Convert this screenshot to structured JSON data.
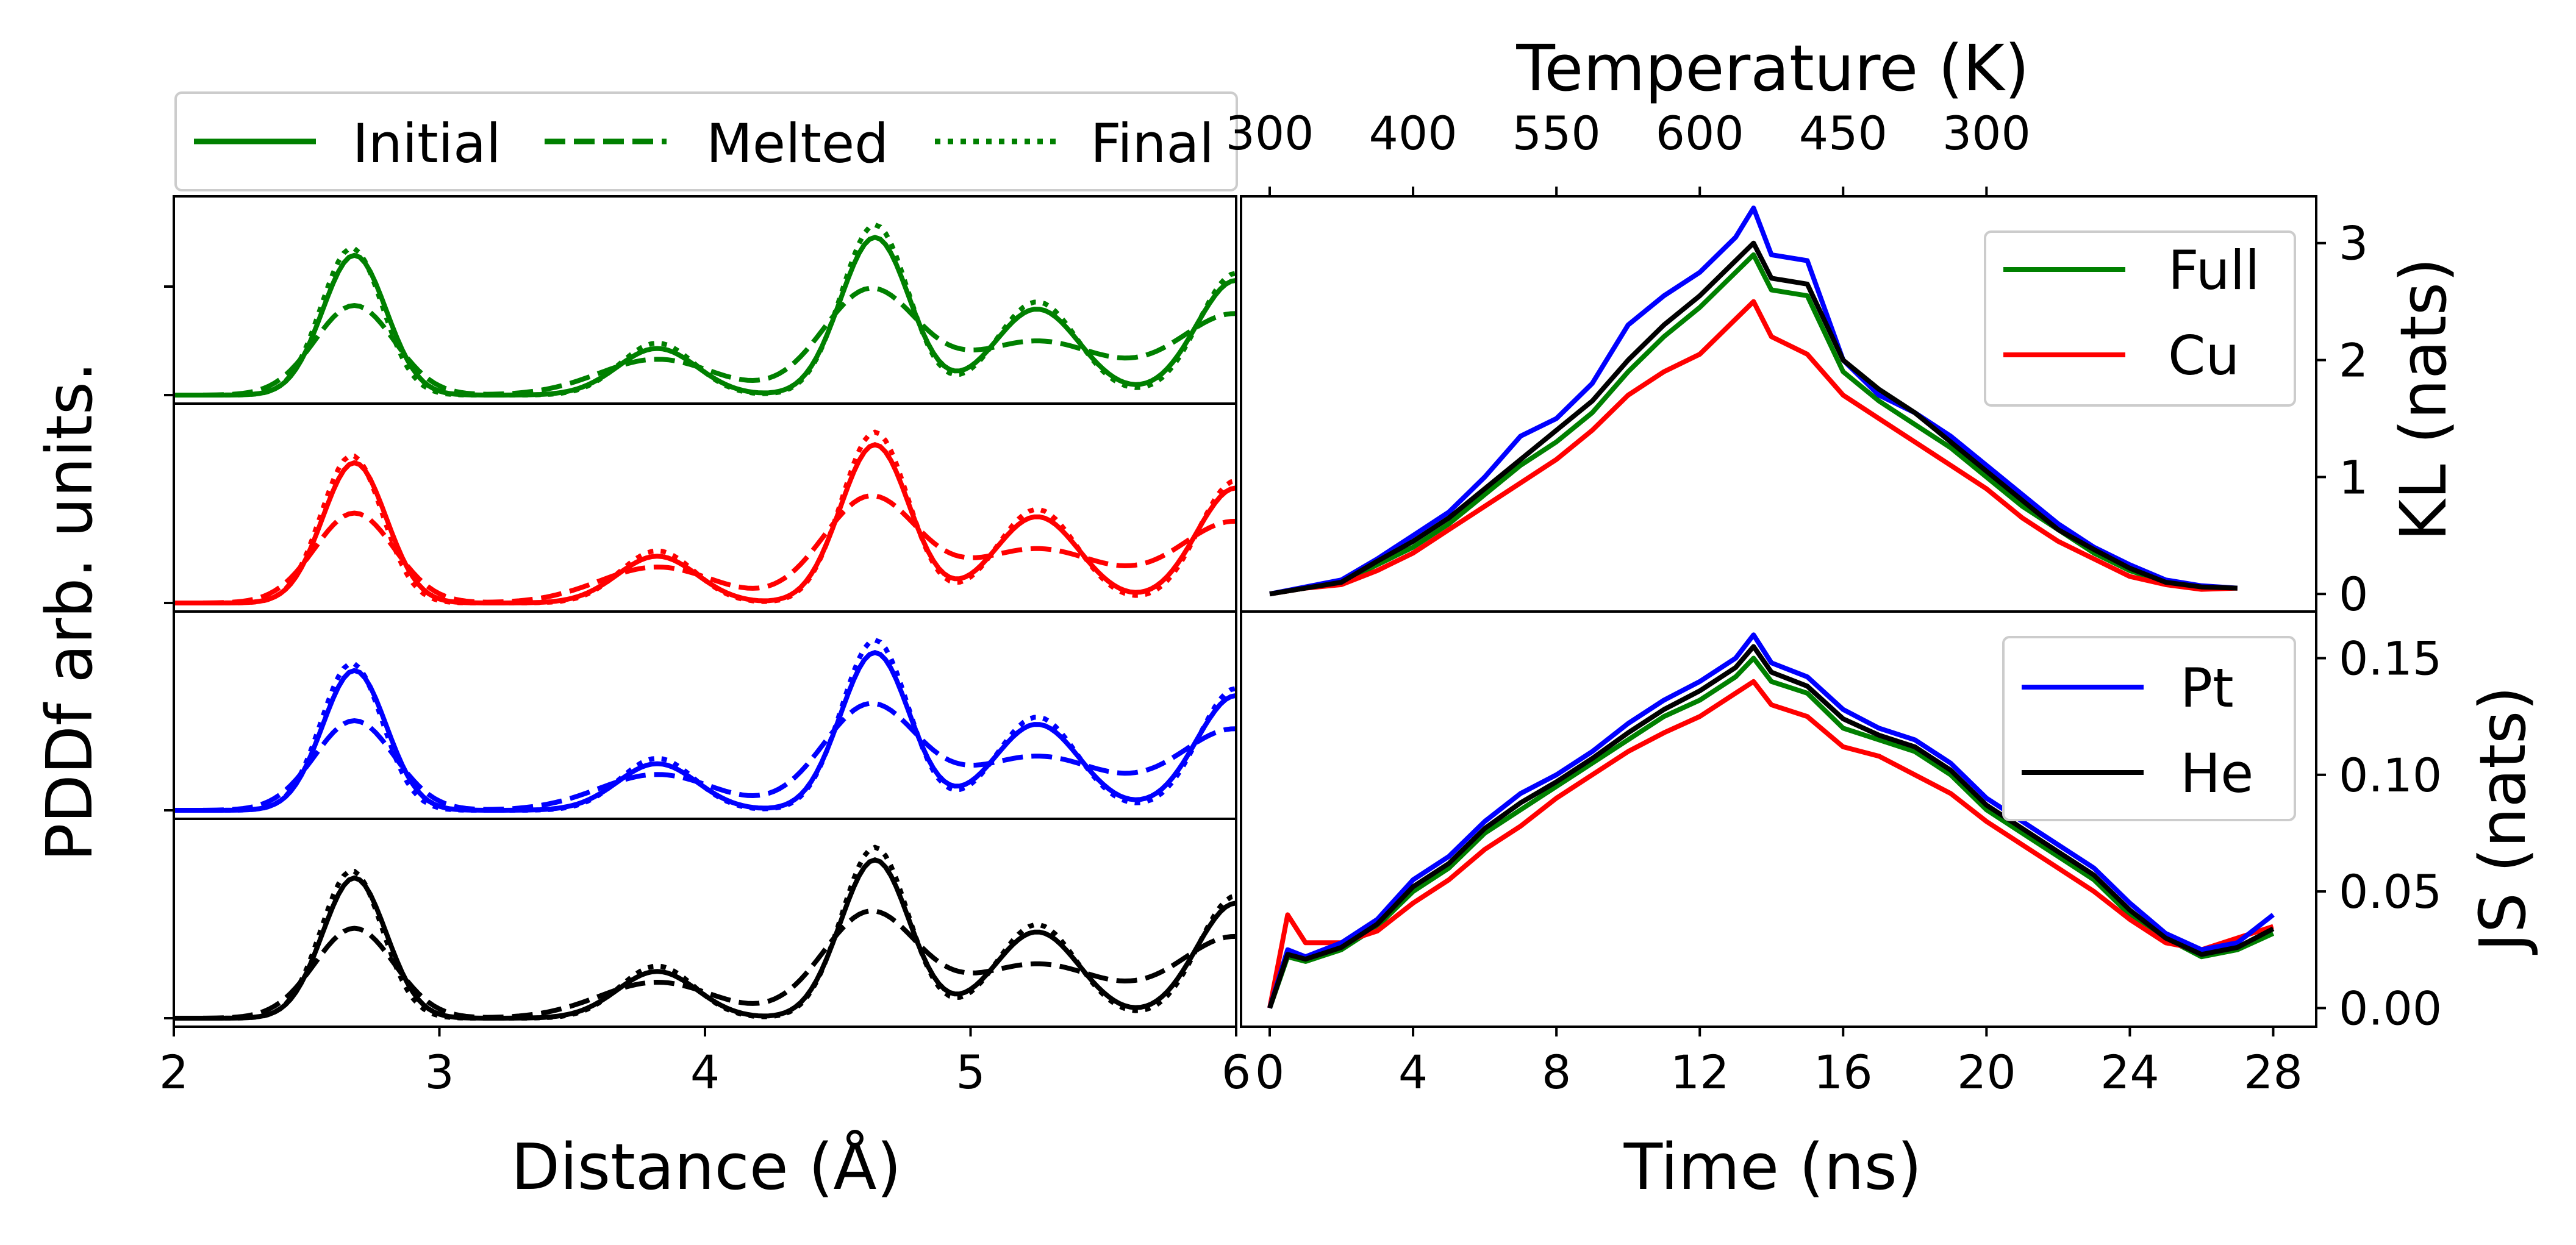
{
  "chart_data": [
    {
      "type": "line",
      "panel": "left-pddf",
      "xlabel": "Distance (Å)",
      "ylabel": "PDDf arb. units.",
      "xlim": [
        2,
        6
      ],
      "xticks": [
        "2",
        "3",
        "4",
        "5",
        "6"
      ],
      "legend": {
        "placement": "top",
        "entries": [
          {
            "label": "Initial",
            "style": "solid"
          },
          {
            "label": "Melted",
            "style": "dashed"
          },
          {
            "label": "Final",
            "style": "dotted"
          }
        ]
      },
      "subplots": [
        {
          "color": "#008000"
        },
        {
          "color": "#ff0000"
        },
        {
          "color": "#0000ff"
        },
        {
          "color": "#000000"
        }
      ],
      "peaks": {
        "initial": [
          [
            2.68,
            0.78,
            0.12
          ],
          [
            3.82,
            0.26,
            0.15
          ],
          [
            4.64,
            0.88,
            0.13
          ],
          [
            5.25,
            0.48,
            0.16
          ],
          [
            6.0,
            0.64,
            0.15
          ]
        ],
        "melted": [
          [
            2.68,
            0.5,
            0.15
          ],
          [
            3.82,
            0.2,
            0.22
          ],
          [
            4.62,
            0.58,
            0.18
          ],
          [
            5.25,
            0.3,
            0.26
          ],
          [
            6.0,
            0.45,
            0.22
          ]
        ],
        "final": [
          [
            2.67,
            0.82,
            0.115
          ],
          [
            3.82,
            0.29,
            0.14
          ],
          [
            4.64,
            0.95,
            0.125
          ],
          [
            5.25,
            0.52,
            0.15
          ],
          [
            6.0,
            0.68,
            0.14
          ]
        ]
      }
    },
    {
      "type": "line",
      "panel": "right-kl",
      "ylabel": "KL (nats)",
      "ylim": [
        -0.15,
        3.4
      ],
      "yticks": [
        "0",
        "1",
        "2",
        "3"
      ],
      "legend": {
        "placement": "top-right",
        "entries": [
          "Full",
          "Cu"
        ]
      },
      "top_axis": {
        "label": "Temperature (K)",
        "ticks": [
          "300",
          "400",
          "550",
          "600",
          "450",
          "300"
        ]
      },
      "x": [
        0,
        1,
        2,
        3,
        4,
        5,
        6,
        7,
        8,
        9,
        10,
        11,
        12,
        13,
        13.5,
        14,
        15,
        16,
        17,
        18,
        19,
        20,
        21,
        22,
        23,
        24,
        25,
        26,
        27
      ],
      "series": [
        {
          "name": "Full",
          "color": "#008000",
          "values": [
            0.0,
            0.05,
            0.1,
            0.25,
            0.4,
            0.6,
            0.85,
            1.1,
            1.3,
            1.55,
            1.9,
            2.2,
            2.45,
            2.75,
            2.9,
            2.6,
            2.55,
            1.9,
            1.65,
            1.45,
            1.25,
            1.0,
            0.75,
            0.55,
            0.35,
            0.2,
            0.1,
            0.05,
            0.05
          ]
        },
        {
          "name": "Cu",
          "color": "#ff0000",
          "values": [
            0.0,
            0.05,
            0.08,
            0.2,
            0.35,
            0.55,
            0.75,
            0.95,
            1.15,
            1.4,
            1.7,
            1.9,
            2.05,
            2.35,
            2.5,
            2.2,
            2.05,
            1.7,
            1.5,
            1.3,
            1.1,
            0.9,
            0.65,
            0.45,
            0.3,
            0.15,
            0.08,
            0.04,
            0.05
          ]
        },
        {
          "name": "Pt",
          "color": "#0000ff",
          "values": [
            0.0,
            0.06,
            0.12,
            0.3,
            0.5,
            0.7,
            1.0,
            1.35,
            1.5,
            1.8,
            2.3,
            2.55,
            2.75,
            3.05,
            3.3,
            2.9,
            2.85,
            2.0,
            1.7,
            1.55,
            1.35,
            1.1,
            0.85,
            0.6,
            0.4,
            0.25,
            0.12,
            0.07,
            0.05
          ]
        },
        {
          "name": "He",
          "color": "#000000",
          "values": [
            0.0,
            0.05,
            0.1,
            0.28,
            0.45,
            0.65,
            0.9,
            1.15,
            1.4,
            1.65,
            2.0,
            2.3,
            2.55,
            2.85,
            3.0,
            2.7,
            2.65,
            2.0,
            1.75,
            1.55,
            1.3,
            1.05,
            0.8,
            0.55,
            0.38,
            0.22,
            0.1,
            0.06,
            0.05
          ]
        }
      ]
    },
    {
      "type": "line",
      "panel": "right-js",
      "xlabel": "Time (ns)",
      "ylabel": "JS (nats)",
      "xlim": [
        -0.8,
        29.2
      ],
      "xticks": [
        "0",
        "4",
        "8",
        "12",
        "16",
        "20",
        "24",
        "28"
      ],
      "ylim": [
        -0.008,
        0.17
      ],
      "yticks": [
        "0.00",
        "0.05",
        "0.10",
        "0.15"
      ],
      "legend": {
        "placement": "top-right",
        "entries": [
          "Pt",
          "He"
        ]
      },
      "x": [
        0,
        0.5,
        1,
        2,
        3,
        4,
        5,
        6,
        7,
        8,
        9,
        10,
        11,
        12,
        13,
        13.5,
        14,
        15,
        16,
        17,
        18,
        19,
        20,
        21,
        22,
        23,
        24,
        25,
        26,
        27,
        28
      ],
      "series": [
        {
          "name": "Full",
          "color": "#008000",
          "values": [
            0.0,
            0.022,
            0.02,
            0.025,
            0.035,
            0.05,
            0.06,
            0.075,
            0.085,
            0.095,
            0.105,
            0.115,
            0.125,
            0.132,
            0.142,
            0.15,
            0.14,
            0.135,
            0.12,
            0.115,
            0.11,
            0.1,
            0.085,
            0.075,
            0.065,
            0.055,
            0.04,
            0.03,
            0.022,
            0.025,
            0.032
          ]
        },
        {
          "name": "Cu",
          "color": "#ff0000",
          "values": [
            0.0,
            0.04,
            0.028,
            0.028,
            0.033,
            0.045,
            0.055,
            0.068,
            0.078,
            0.09,
            0.1,
            0.11,
            0.118,
            0.125,
            0.135,
            0.14,
            0.13,
            0.125,
            0.112,
            0.108,
            0.1,
            0.092,
            0.08,
            0.07,
            0.06,
            0.05,
            0.038,
            0.028,
            0.025,
            0.03,
            0.035
          ]
        },
        {
          "name": "Pt",
          "color": "#0000ff",
          "values": [
            0.0,
            0.025,
            0.022,
            0.028,
            0.038,
            0.055,
            0.065,
            0.08,
            0.092,
            0.1,
            0.11,
            0.122,
            0.132,
            0.14,
            0.15,
            0.16,
            0.148,
            0.142,
            0.128,
            0.12,
            0.115,
            0.105,
            0.09,
            0.08,
            0.07,
            0.06,
            0.045,
            0.032,
            0.025,
            0.028,
            0.04
          ]
        },
        {
          "name": "He",
          "color": "#000000",
          "values": [
            0.0,
            0.023,
            0.021,
            0.026,
            0.036,
            0.052,
            0.062,
            0.077,
            0.088,
            0.097,
            0.107,
            0.118,
            0.128,
            0.136,
            0.146,
            0.155,
            0.144,
            0.138,
            0.124,
            0.117,
            0.112,
            0.102,
            0.087,
            0.077,
            0.067,
            0.057,
            0.042,
            0.03,
            0.023,
            0.026,
            0.034
          ]
        }
      ]
    }
  ]
}
